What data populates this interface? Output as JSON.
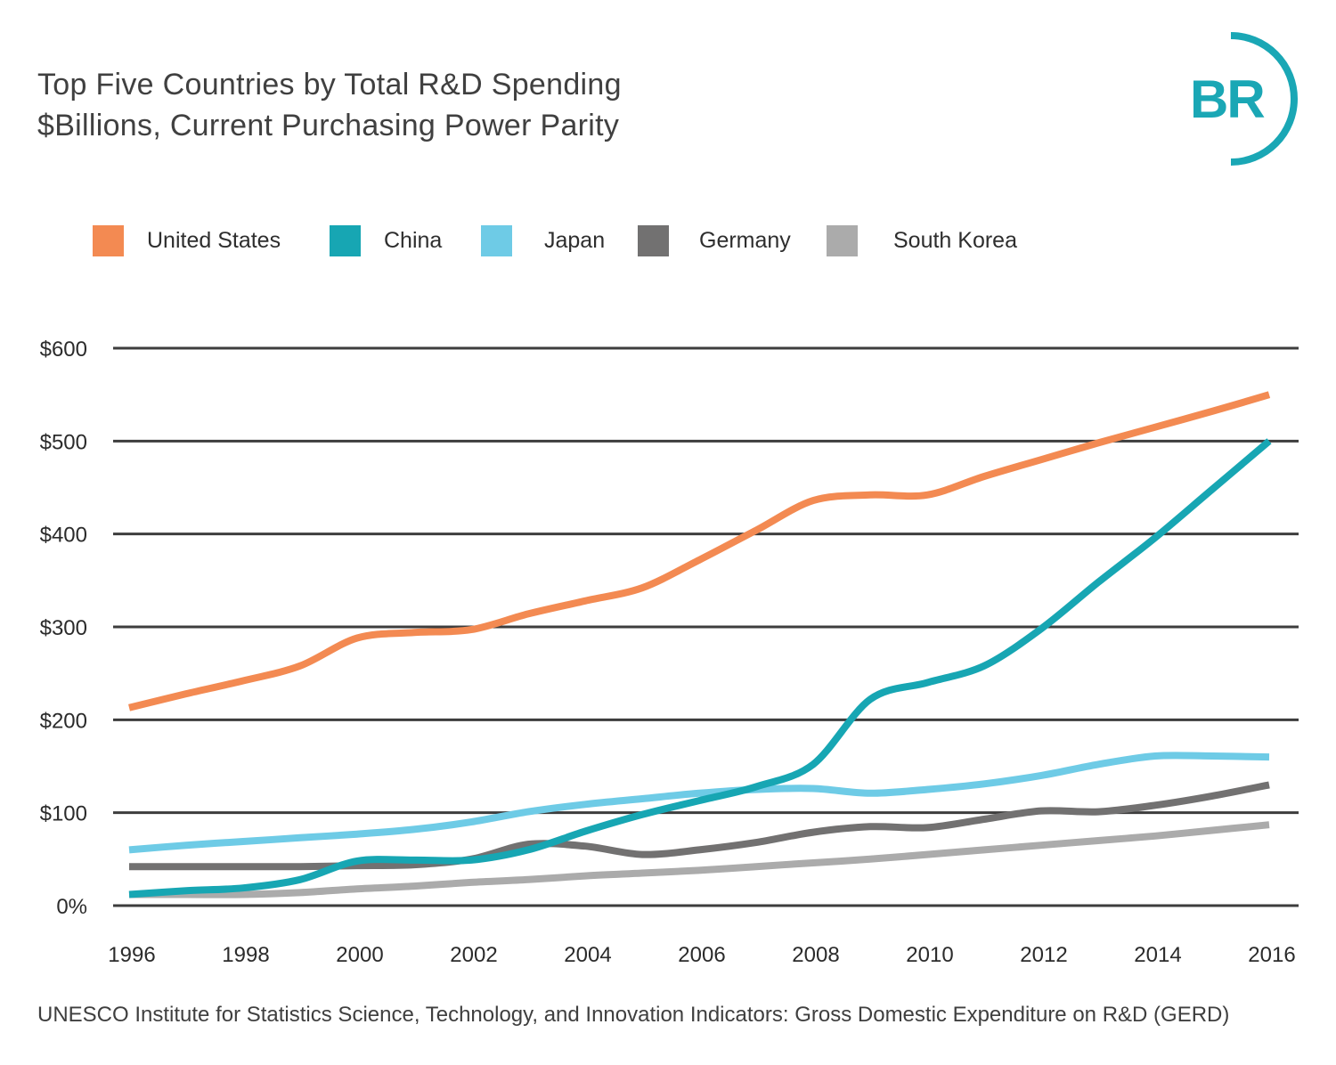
{
  "header": {
    "title": "Top Five Countries by Total R&D Spending",
    "subtitle": "$Billions, Current Purchasing Power Parity"
  },
  "logo": {
    "text": "BR",
    "color": "#1aa7b5"
  },
  "source": "UNESCO Institute for Statistics Science, Technology, and Innovation Indicators: Gross Domestic Expenditure on R&D (GERD)",
  "chart_data": {
    "type": "line",
    "title": "Top Five Countries by Total R&D Spending",
    "subtitle": "$Billions, Current Purchasing Power Parity",
    "xlabel": "",
    "ylabel": "",
    "x": [
      1996,
      1997,
      1998,
      1999,
      2000,
      2001,
      2002,
      2003,
      2004,
      2005,
      2006,
      2007,
      2008,
      2009,
      2010,
      2011,
      2012,
      2013,
      2014,
      2015,
      2016
    ],
    "x_tick_labels": [
      "1996",
      "1998",
      "2000",
      "2002",
      "2004",
      "2006",
      "2008",
      "2010",
      "2012",
      "2014",
      "2016"
    ],
    "y_ticks": [
      0,
      100,
      200,
      300,
      400,
      500,
      600
    ],
    "y_tick_labels": [
      "0%",
      "$100",
      "$200",
      "$300",
      "$400",
      "$500",
      "$600"
    ],
    "ylim": [
      0,
      600
    ],
    "xlim": [
      1996,
      2016
    ],
    "grid": "horizontal",
    "legend_position": "top",
    "series": [
      {
        "name": "United States",
        "color": "#f38a52",
        "values": [
          213,
          228,
          242,
          258,
          288,
          294,
          297,
          314,
          328,
          342,
          372,
          404,
          436,
          442,
          442,
          462,
          480,
          498,
          515,
          532,
          550
        ]
      },
      {
        "name": "China",
        "color": "#17a6b3",
        "values": [
          12,
          16,
          19,
          28,
          48,
          49,
          49,
          60,
          80,
          98,
          113,
          128,
          152,
          222,
          240,
          258,
          298,
          348,
          396,
          448,
          500
        ]
      },
      {
        "name": "Japan",
        "color": "#6ecbe6",
        "values": [
          60,
          65,
          69,
          73,
          77,
          82,
          90,
          101,
          109,
          115,
          121,
          125,
          126,
          121,
          125,
          131,
          140,
          152,
          161,
          161,
          160
        ]
      },
      {
        "name": "Germany",
        "color": "#727171",
        "values": [
          42,
          42,
          42,
          42,
          43,
          44,
          50,
          66,
          64,
          55,
          60,
          68,
          79,
          85,
          84,
          93,
          102,
          101,
          108,
          118,
          130
        ]
      },
      {
        "name": "South Korea",
        "color": "#ababab",
        "values": [
          12,
          12,
          12,
          14,
          18,
          21,
          25,
          28,
          32,
          35,
          38,
          42,
          46,
          50,
          55,
          60,
          65,
          70,
          75,
          81,
          87
        ]
      }
    ]
  }
}
